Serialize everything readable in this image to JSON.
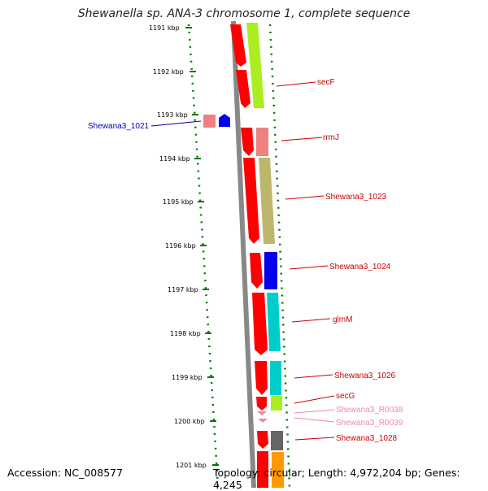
{
  "title": "Shewanella sp. ANA-3 chromosome 1, complete sequence",
  "accession_text": "Accession: NC_008577",
  "topology_text": "Topology: circular; Length: 4,972,204 bp; Genes: 4,245",
  "scale": {
    "unit": "kbp",
    "ticks": [
      "1191 kbp",
      "1192 kbp",
      "1193 kbp",
      "1194 kbp",
      "1195 kbp",
      "1196 kbp",
      "1197 kbp",
      "1198 kbp",
      "1199 kbp",
      "1200 kbp",
      "1201 kbp"
    ]
  },
  "colors": {
    "cds": "#ff0000",
    "label_red": "#cc0000",
    "label_blue": "#0000aa",
    "label_pink": "#ee88aa",
    "backbone": "#888888",
    "ticks": "#007700"
  },
  "genes": [
    {
      "name": "secF",
      "label_color": "#cc0000",
      "function_color": "#aaee22"
    },
    {
      "name": "rrmJ",
      "label_color": "#cc0000",
      "function_color": "#ee8080"
    },
    {
      "name": "Shewana3_1021",
      "label_color": "#0000aa",
      "function_color": "#0000ee"
    },
    {
      "name": "Shewana3_1023",
      "label_color": "#cc0000",
      "function_color": "#bdb76b"
    },
    {
      "name": "Shewana3_1024",
      "label_color": "#cc0000",
      "function_color": "#0000ee"
    },
    {
      "name": "glmM",
      "label_color": "#cc0000",
      "function_color": "#00cccc"
    },
    {
      "name": "Shewana3_1026",
      "label_color": "#cc0000",
      "function_color": "#00cccc"
    },
    {
      "name": "secG",
      "label_color": "#cc0000",
      "function_color": "#aaee22"
    },
    {
      "name": "Shewana3_R0038",
      "label_color": "#ee88aa",
      "function_color": "#ee88aa"
    },
    {
      "name": "Shewana3_R0039",
      "label_color": "#ee88aa",
      "function_color": "#ee88aa"
    },
    {
      "name": "Shewana3_1028",
      "label_color": "#cc0000",
      "function_color": "#666666"
    }
  ]
}
